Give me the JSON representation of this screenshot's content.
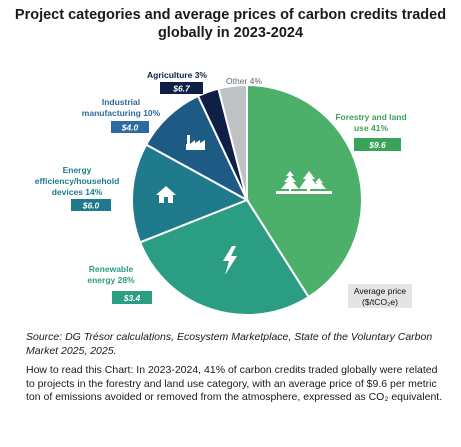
{
  "title_line1": "Project categories and average prices of carbon credits traded",
  "title_line2": "globally in 2023-2024",
  "chart_data": {
    "type": "pie",
    "slices": [
      {
        "label": "Forestry and land use",
        "percent": 41,
        "price": "$9.6",
        "color": "#4caf6a",
        "label_color": "#3aa35a",
        "icon": "trees-icon"
      },
      {
        "label": "Renewable energy",
        "percent": 28,
        "price": "$3.4",
        "color": "#2a9d82",
        "label_color": "#2a9d82",
        "icon": "lightning-icon"
      },
      {
        "label": "Energy efficiency/household devices",
        "percent": 14,
        "price": "$6.0",
        "color": "#1f7a8c",
        "label_color": "#1f7a8c",
        "icon": "house-icon"
      },
      {
        "label": "Industrial manufacturing",
        "percent": 10,
        "price": "$4.0",
        "color": "#1d5b85",
        "label_color": "#2d6a9f",
        "icon": "factory-icon"
      },
      {
        "label": "Agriculture",
        "percent": 3,
        "price": "$6.7",
        "color": "#0f1f45",
        "label_color": "#0f1f45",
        "icon": ""
      },
      {
        "label": "Other",
        "percent": 4,
        "price": "",
        "color": "#bfc2c5",
        "label_color": "#777777",
        "icon": ""
      }
    ],
    "labels": {
      "forestry_l1": "Forestry and land",
      "forestry_l2": "use 41%",
      "renewable_l1": "Renewable",
      "renewable_l2": "energy 28%",
      "energy_l1": "Energy",
      "energy_l2": "efficiency/household",
      "energy_l3": "devices 14%",
      "industrial_l1": "Industrial",
      "industrial_l2": "manufacturing 10%",
      "agriculture_l1": "Agriculture 3%",
      "other_l1": "Other 4%"
    }
  },
  "legend": {
    "line1": "Average price",
    "line2": "($/tCO₂e)"
  },
  "source": "Source: DG Trésor calculations, Ecosystem Marketplace, State of the Voluntary Carbon Market 2025, 2025.",
  "howto": "How to read this Chart: In 2023-2024, 41% of carbon credits traded globally were related to projects in the forestry and land use category, with an average price of $9.6 per metric ton of emissions avoided or removed from the atmosphere, expressed as CO₂ equivalent."
}
